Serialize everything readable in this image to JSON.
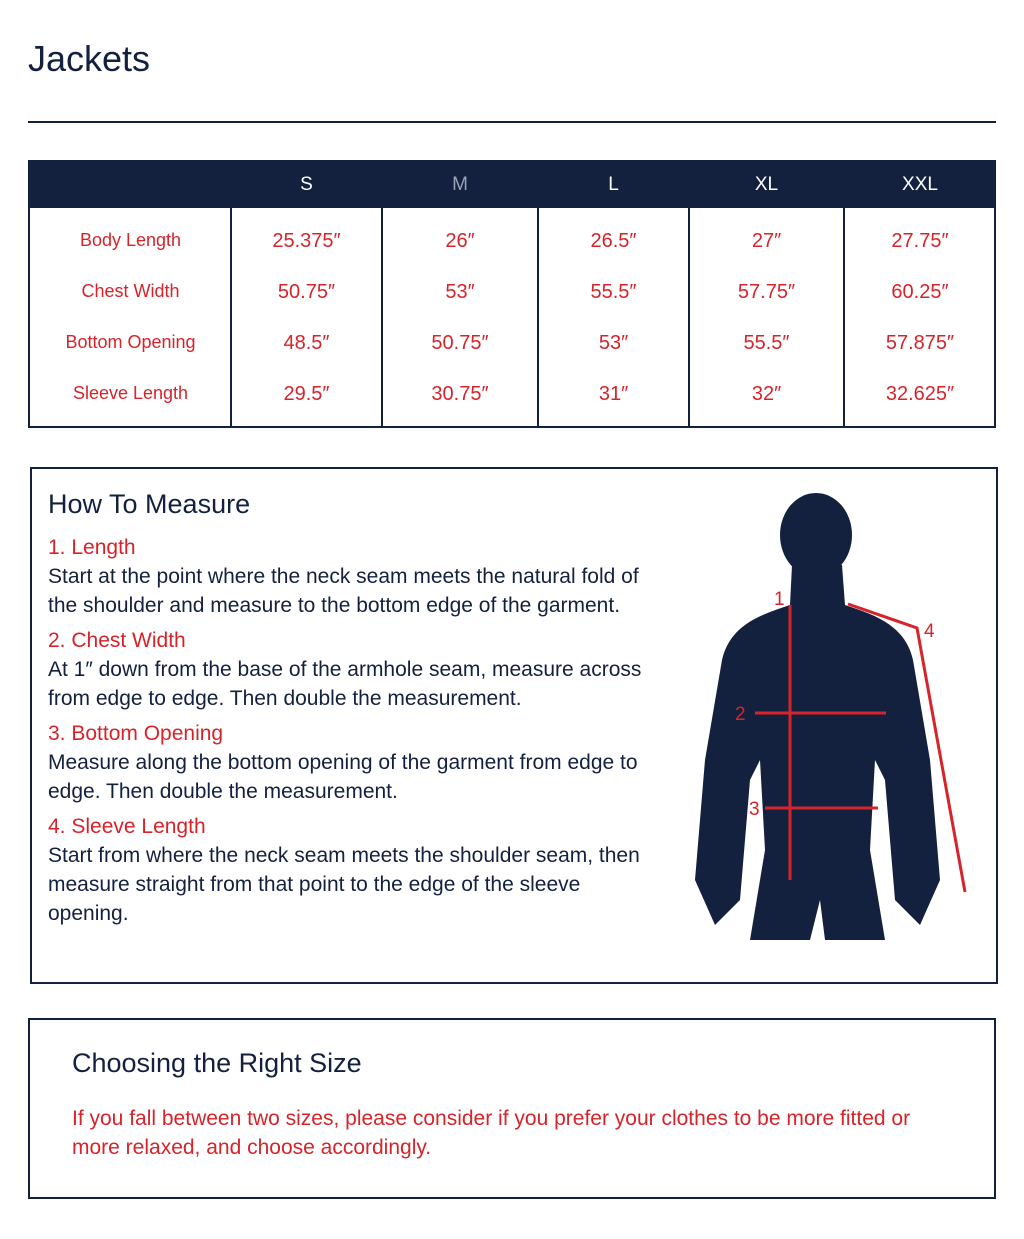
{
  "title": "Jackets",
  "table": {
    "columns": [
      "S",
      "M",
      "L",
      "XL",
      "XXL"
    ],
    "rows": [
      {
        "label": "Body Length",
        "values": [
          "25.375″",
          "26″",
          "26.5″",
          "27″",
          "27.75″"
        ]
      },
      {
        "label": "Chest Width",
        "values": [
          "50.75″",
          "53″",
          "55.5″",
          "57.75″",
          "60.25″"
        ]
      },
      {
        "label": "Bottom Opening",
        "values": [
          "48.5″",
          "50.75″",
          "53″",
          "55.5″",
          "57.875″"
        ]
      },
      {
        "label": "Sleeve Length",
        "values": [
          "29.5″",
          "30.75″",
          "31″",
          "32″",
          "32.625″"
        ]
      }
    ]
  },
  "measure": {
    "title": "How To Measure",
    "steps": [
      {
        "heading": "1. Length",
        "text": "Start at the point where the neck seam meets the natural fold of the shoulder and measure to the bottom edge of the garment."
      },
      {
        "heading": "2. Chest Width",
        "text": "At 1″ down from the base of the armhole seam, measure across from edge to edge. Then double the measurement."
      },
      {
        "heading": "3. Bottom Opening",
        "text": "Measure along the bottom opening of the garment from edge to edge. Then double the measurement."
      },
      {
        "heading": "4. Sleeve Length",
        "text": "Start from where the neck seam meets the shoulder seam, then measure straight from that point to the edge of the sleeve opening."
      }
    ],
    "figure_labels": [
      "1",
      "2",
      "3",
      "4"
    ]
  },
  "choosing": {
    "title": "Choosing the Right Size",
    "text": "If you fall between two sizes, please consider if you prefer your clothes to be more fitted or more relaxed, and choose accordingly."
  }
}
